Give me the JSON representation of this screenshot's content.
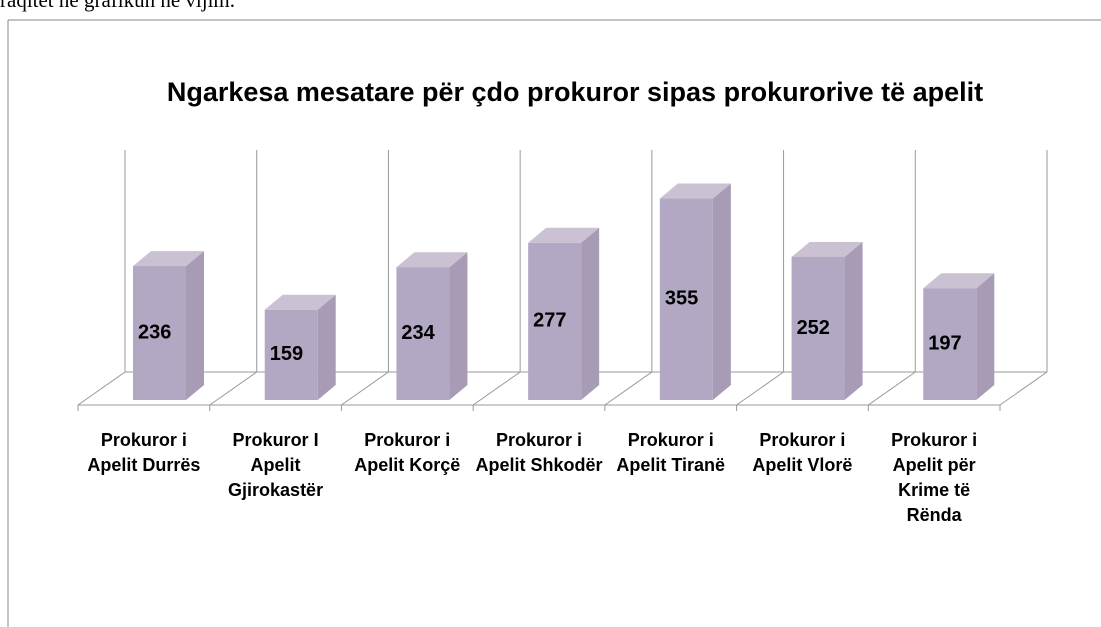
{
  "intro_text": "raqitet në grafikun në vijim.",
  "chart_data": {
    "type": "bar3d",
    "title": "Ngarkesa mesatare për çdo prokuror sipas prokurorive të apelit",
    "categories": [
      "Prokuror i Apelit Durrës",
      "Prokuror I Apelit Gjirokastër",
      "Prokuror i Apelit Korçë",
      "Prokuror i Apelit Shkodër",
      "Prokuror i Apelit Tiranë",
      "Prokuror i Apelit Vlorë",
      "Prokuror i Apelit për Krime të Rënda"
    ],
    "values": [
      236,
      159,
      234,
      277,
      355,
      252,
      197
    ],
    "color": "#b3a8c4",
    "ylim": [
      0,
      400
    ]
  }
}
